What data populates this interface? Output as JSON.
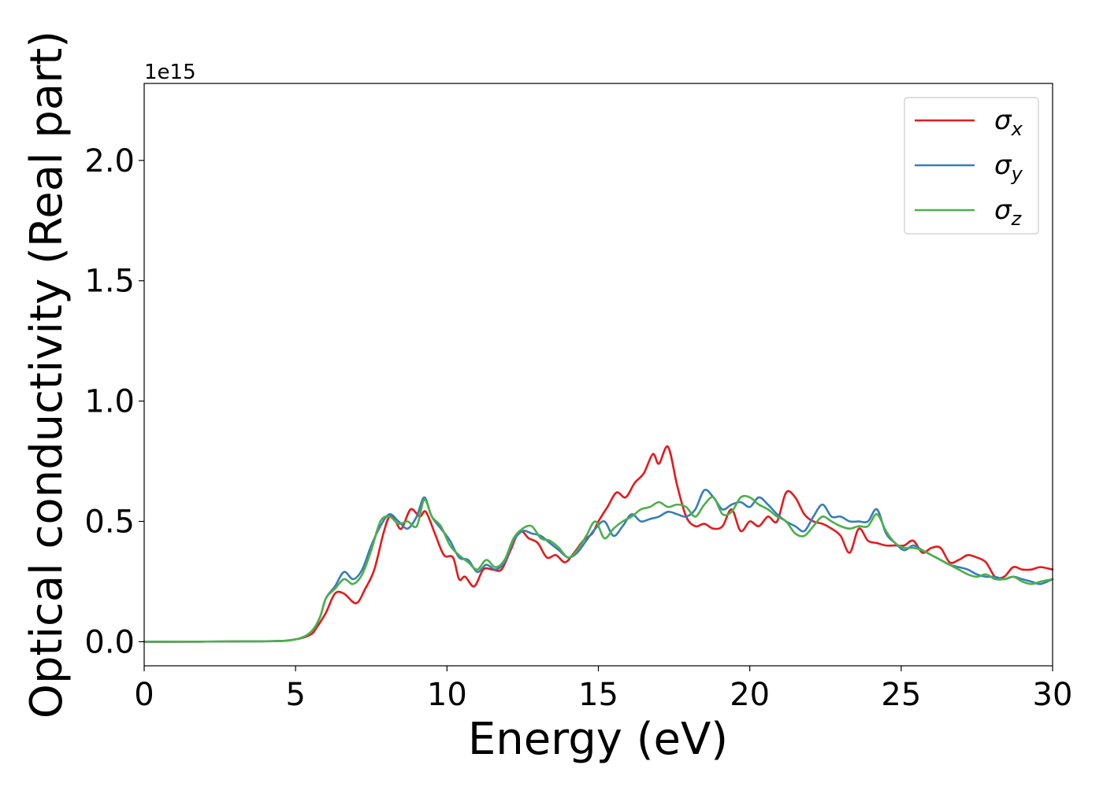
{
  "chart_data": {
    "type": "line",
    "xlabel": "Energy (eV)",
    "ylabel": "Optical conductivity (Real part)",
    "y_offset_label": "1e15",
    "xlim": [
      0,
      30
    ],
    "ylim": [
      -0.1,
      2.32
    ],
    "x_ticks": [
      0,
      5,
      10,
      15,
      20,
      25,
      30
    ],
    "y_ticks": [
      0.0,
      0.5,
      1.0,
      1.5,
      2.0
    ],
    "x_tick_labels": [
      "0",
      "5",
      "10",
      "15",
      "20",
      "25",
      "30"
    ],
    "y_tick_labels": [
      "0.0",
      "0.5",
      "1.0",
      "1.5",
      "2.0"
    ],
    "grid": false,
    "legend_position": "top-right",
    "series": [
      {
        "name": "σx",
        "name_base": "σ",
        "name_sub": "x",
        "color": "#e41a1c",
        "x": [
          0,
          4,
          5,
          5.5,
          5.7,
          6.0,
          6.3,
          6.6,
          7.0,
          7.3,
          7.6,
          7.9,
          8.1,
          8.3,
          8.5,
          8.8,
          9.1,
          9.3,
          9.6,
          9.9,
          10.2,
          10.4,
          10.6,
          10.9,
          11.2,
          11.5,
          11.8,
          12.1,
          12.4,
          12.7,
          13.0,
          13.3,
          13.6,
          13.9,
          14.2,
          14.5,
          14.8,
          15.0,
          15.3,
          15.6,
          15.9,
          16.2,
          16.5,
          16.8,
          17.0,
          17.3,
          17.6,
          17.9,
          18.2,
          18.5,
          18.8,
          19.1,
          19.4,
          19.7,
          20.0,
          20.3,
          20.6,
          20.9,
          21.2,
          21.5,
          21.8,
          22.1,
          22.4,
          22.7,
          23.0,
          23.3,
          23.6,
          23.9,
          24.2,
          24.5,
          24.8,
          25.1,
          25.4,
          25.7,
          26.0,
          26.3,
          26.6,
          26.9,
          27.2,
          27.5,
          27.8,
          28.1,
          28.4,
          28.7,
          29.0,
          29.3,
          29.6,
          30.0
        ],
        "values": [
          0.0,
          0.002,
          0.01,
          0.03,
          0.06,
          0.12,
          0.2,
          0.2,
          0.16,
          0.22,
          0.3,
          0.45,
          0.52,
          0.5,
          0.47,
          0.55,
          0.52,
          0.54,
          0.45,
          0.36,
          0.35,
          0.26,
          0.27,
          0.23,
          0.3,
          0.3,
          0.3,
          0.38,
          0.46,
          0.43,
          0.41,
          0.35,
          0.36,
          0.33,
          0.37,
          0.42,
          0.45,
          0.5,
          0.56,
          0.62,
          0.6,
          0.66,
          0.7,
          0.78,
          0.74,
          0.81,
          0.65,
          0.52,
          0.48,
          0.49,
          0.47,
          0.48,
          0.55,
          0.46,
          0.5,
          0.48,
          0.52,
          0.5,
          0.62,
          0.6,
          0.53,
          0.5,
          0.49,
          0.47,
          0.44,
          0.37,
          0.47,
          0.42,
          0.41,
          0.4,
          0.4,
          0.4,
          0.42,
          0.37,
          0.39,
          0.39,
          0.33,
          0.34,
          0.36,
          0.35,
          0.33,
          0.27,
          0.27,
          0.31,
          0.3,
          0.3,
          0.31,
          0.3
        ]
      },
      {
        "name": "σy",
        "name_base": "σ",
        "name_sub": "y",
        "color": "#377eb8",
        "x": [
          0,
          4,
          5,
          5.5,
          5.8,
          6.0,
          6.3,
          6.6,
          6.9,
          7.2,
          7.5,
          7.8,
          8.1,
          8.4,
          8.7,
          9.0,
          9.25,
          9.5,
          9.8,
          10.1,
          10.4,
          10.7,
          11.0,
          11.3,
          11.6,
          11.9,
          12.2,
          12.5,
          12.8,
          13.1,
          13.4,
          13.7,
          14.0,
          14.3,
          14.6,
          14.9,
          15.2,
          15.5,
          15.8,
          16.1,
          16.4,
          16.7,
          17.0,
          17.3,
          17.6,
          17.9,
          18.2,
          18.5,
          18.8,
          19.1,
          19.4,
          19.7,
          20.0,
          20.3,
          20.6,
          20.9,
          21.2,
          21.5,
          21.8,
          22.1,
          22.4,
          22.7,
          23.0,
          23.3,
          23.6,
          23.9,
          24.2,
          24.5,
          24.8,
          25.1,
          25.4,
          25.7,
          26.0,
          26.3,
          26.6,
          26.9,
          27.2,
          27.5,
          27.8,
          28.1,
          28.4,
          28.7,
          29.0,
          29.3,
          29.6,
          30.0
        ],
        "values": [
          0.0,
          0.002,
          0.01,
          0.04,
          0.1,
          0.18,
          0.23,
          0.29,
          0.26,
          0.3,
          0.4,
          0.48,
          0.53,
          0.5,
          0.47,
          0.52,
          0.6,
          0.52,
          0.47,
          0.42,
          0.35,
          0.34,
          0.29,
          0.32,
          0.3,
          0.33,
          0.42,
          0.46,
          0.45,
          0.44,
          0.41,
          0.38,
          0.35,
          0.37,
          0.42,
          0.47,
          0.5,
          0.44,
          0.48,
          0.53,
          0.5,
          0.51,
          0.52,
          0.54,
          0.53,
          0.52,
          0.55,
          0.63,
          0.6,
          0.55,
          0.57,
          0.58,
          0.56,
          0.6,
          0.57,
          0.53,
          0.5,
          0.48,
          0.46,
          0.52,
          0.57,
          0.52,
          0.52,
          0.5,
          0.5,
          0.5,
          0.55,
          0.45,
          0.41,
          0.38,
          0.4,
          0.38,
          0.36,
          0.34,
          0.32,
          0.31,
          0.3,
          0.28,
          0.27,
          0.27,
          0.26,
          0.27,
          0.26,
          0.25,
          0.24,
          0.26
        ]
      },
      {
        "name": "σz",
        "name_base": "σ",
        "name_sub": "z",
        "color": "#4daf4a",
        "x": [
          0,
          4,
          5,
          5.5,
          5.8,
          6.0,
          6.3,
          6.6,
          6.9,
          7.2,
          7.5,
          7.8,
          8.1,
          8.4,
          8.7,
          9.0,
          9.25,
          9.5,
          9.8,
          10.1,
          10.4,
          10.7,
          11.0,
          11.3,
          11.6,
          11.9,
          12.2,
          12.5,
          12.8,
          13.1,
          13.4,
          13.7,
          14.0,
          14.3,
          14.6,
          14.9,
          15.2,
          15.5,
          15.8,
          16.1,
          16.4,
          16.7,
          17.0,
          17.3,
          17.6,
          17.9,
          18.2,
          18.5,
          18.8,
          19.1,
          19.4,
          19.7,
          20.0,
          20.3,
          20.6,
          20.9,
          21.2,
          21.5,
          21.8,
          22.1,
          22.4,
          22.7,
          23.0,
          23.3,
          23.6,
          23.9,
          24.2,
          24.5,
          24.8,
          25.1,
          25.4,
          25.7,
          26.0,
          26.3,
          26.6,
          26.9,
          27.2,
          27.5,
          27.8,
          28.1,
          28.4,
          28.7,
          29.0,
          29.3,
          29.6,
          30.0
        ],
        "values": [
          0.0,
          0.002,
          0.01,
          0.04,
          0.1,
          0.18,
          0.22,
          0.26,
          0.24,
          0.28,
          0.38,
          0.5,
          0.52,
          0.49,
          0.5,
          0.48,
          0.59,
          0.52,
          0.48,
          0.4,
          0.36,
          0.33,
          0.3,
          0.34,
          0.31,
          0.34,
          0.43,
          0.47,
          0.48,
          0.43,
          0.42,
          0.39,
          0.35,
          0.38,
          0.44,
          0.5,
          0.43,
          0.47,
          0.5,
          0.52,
          0.55,
          0.56,
          0.58,
          0.56,
          0.57,
          0.56,
          0.52,
          0.57,
          0.6,
          0.53,
          0.54,
          0.6,
          0.6,
          0.57,
          0.55,
          0.52,
          0.5,
          0.45,
          0.44,
          0.48,
          0.52,
          0.5,
          0.48,
          0.47,
          0.48,
          0.48,
          0.53,
          0.46,
          0.41,
          0.39,
          0.39,
          0.38,
          0.36,
          0.34,
          0.32,
          0.3,
          0.28,
          0.27,
          0.28,
          0.26,
          0.26,
          0.27,
          0.25,
          0.24,
          0.25,
          0.26
        ]
      }
    ]
  }
}
